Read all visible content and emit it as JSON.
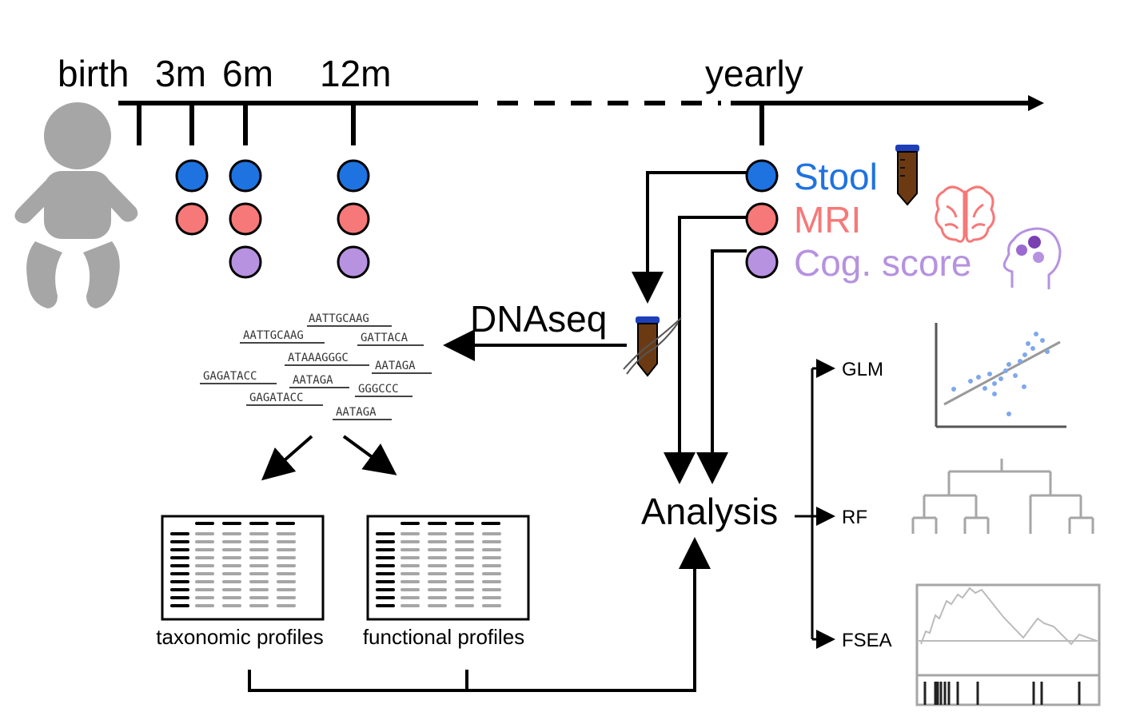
{
  "timeline": {
    "labels": [
      "birth",
      "3m",
      "6m",
      "12m",
      "yearly"
    ]
  },
  "legend": {
    "stool": "Stool",
    "mri": "MRI",
    "cog": "Cog. score"
  },
  "colors": {
    "stool": "#1e73e0",
    "mri": "#f77878",
    "cog": "#b692e0",
    "gray": "#a6a6a6",
    "tube_brown": "#6b3a12",
    "tube_cap": "#1f3fb8"
  },
  "sequencing": {
    "label": "DNAseq",
    "reads": [
      "AATTGCAAG",
      "AATTGCAAG",
      "GATTACA",
      "ATAAAGGGC",
      "AATAGA",
      "GAGATACC",
      "AATAGA",
      "GGGCCC",
      "GAGATACC",
      "AATAGA"
    ]
  },
  "profiles": {
    "taxonomic": "taxonomic profiles",
    "functional": "functional profiles"
  },
  "analysis": {
    "title": "Analysis",
    "methods": [
      "GLM",
      "RF",
      "FSEA"
    ]
  }
}
